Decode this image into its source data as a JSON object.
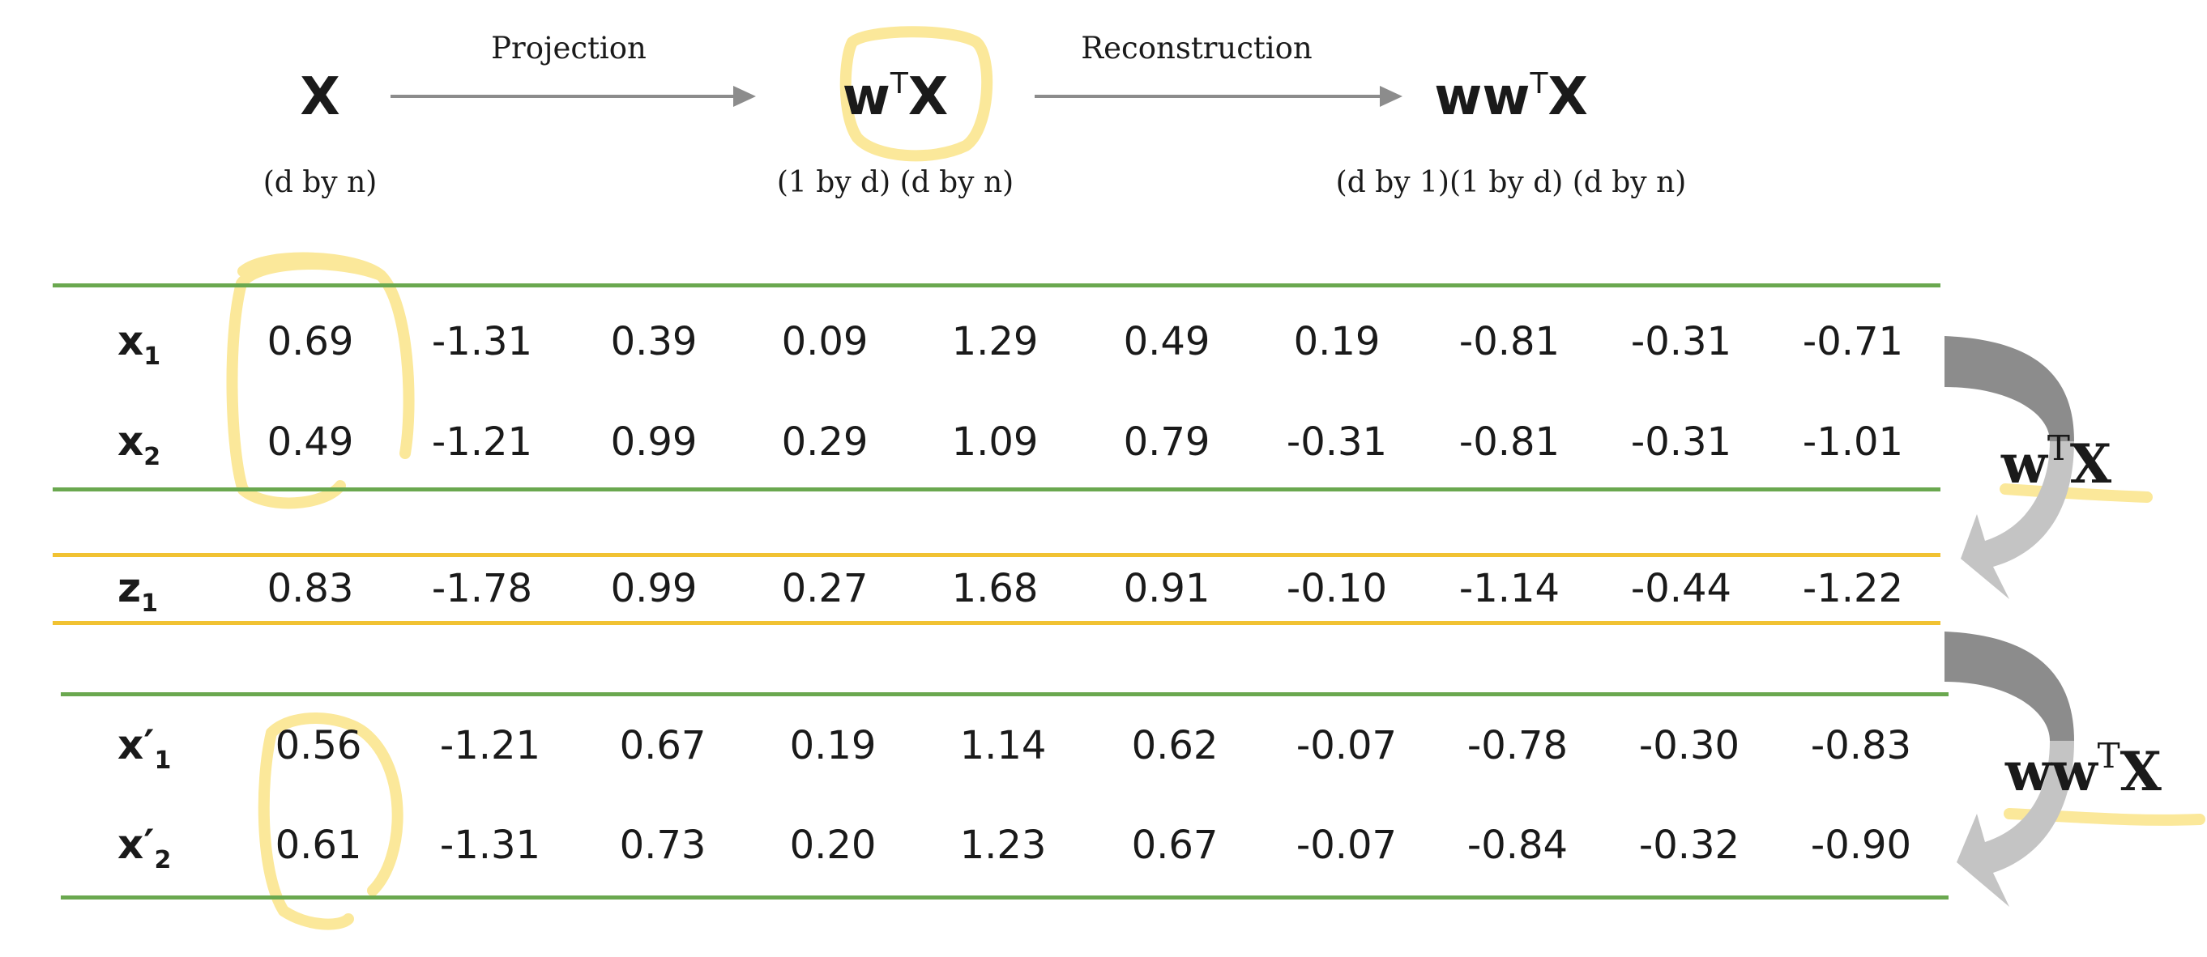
{
  "header": {
    "steps": [
      {
        "name": "x",
        "base": "X",
        "w": "",
        "sup": "",
        "caption": "(d by n)"
      },
      {
        "name": "projection",
        "base": "X",
        "w": "w",
        "sup": "T",
        "caption": "(1 by d) (d by n)"
      },
      {
        "name": "reconstruction",
        "base": "X",
        "w": "ww",
        "sup": "T",
        "caption": "(d by 1)(1 by d) (d by n)"
      }
    ],
    "arrows": [
      {
        "label": "Projection"
      },
      {
        "label": "Reconstruction"
      }
    ]
  },
  "tables": {
    "original": {
      "rows": [
        {
          "label": "x",
          "prime": "",
          "sub": "1",
          "values": [
            "0.69",
            "-1.31",
            "0.39",
            "0.09",
            "1.29",
            "0.49",
            "0.19",
            "-0.81",
            "-0.31",
            "-0.71"
          ]
        },
        {
          "label": "x",
          "prime": "",
          "sub": "2",
          "values": [
            "0.49",
            "-1.21",
            "0.99",
            "0.29",
            "1.09",
            "0.79",
            "-0.31",
            "-0.81",
            "-0.31",
            "-1.01"
          ]
        }
      ]
    },
    "projected": {
      "rows": [
        {
          "label": "z",
          "prime": "",
          "sub": "1",
          "values": [
            "0.83",
            "-1.78",
            "0.99",
            "0.27",
            "1.68",
            "0.91",
            "-0.10",
            "-1.14",
            "-0.44",
            "-1.22"
          ]
        }
      ]
    },
    "reconstructed": {
      "rows": [
        {
          "label": "x",
          "prime": "′",
          "sub": "1",
          "values": [
            "0.56",
            "-1.21",
            "0.67",
            "0.19",
            "1.14",
            "0.62",
            "-0.07",
            "-0.78",
            "-0.30",
            "-0.83"
          ]
        },
        {
          "label": "x",
          "prime": "′",
          "sub": "2",
          "values": [
            "0.61",
            "-1.31",
            "0.73",
            "0.20",
            "1.23",
            "0.67",
            "-0.07",
            "-0.84",
            "-0.32",
            "-0.90"
          ]
        }
      ]
    }
  },
  "side_labels": {
    "projection": {
      "w": "w",
      "sup": "T",
      "base": "X"
    },
    "reconstruction": {
      "w": "ww",
      "sup": "T",
      "base": "X"
    }
  },
  "colors": {
    "green_rule": "#6aa84f",
    "yellow_rule": "#f1c232",
    "highlight": "#fbe89a",
    "arrow_dark": "#8c8c8c",
    "arrow_light": "#c4c4c4"
  }
}
